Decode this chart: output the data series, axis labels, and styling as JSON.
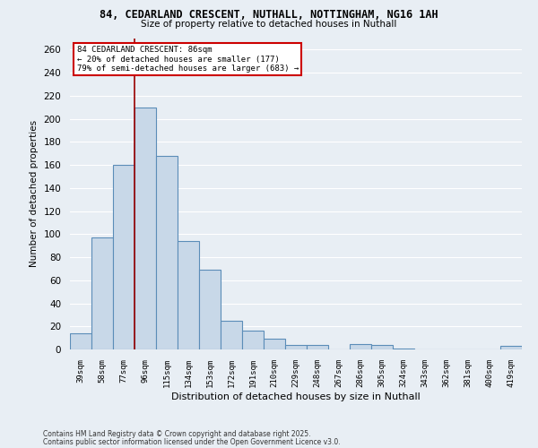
{
  "title1": "84, CEDARLAND CRESCENT, NUTHALL, NOTTINGHAM, NG16 1AH",
  "title2": "Size of property relative to detached houses in Nuthall",
  "xlabel": "Distribution of detached houses by size in Nuthall",
  "ylabel": "Number of detached properties",
  "categories": [
    "39sqm",
    "58sqm",
    "77sqm",
    "96sqm",
    "115sqm",
    "134sqm",
    "153sqm",
    "172sqm",
    "191sqm",
    "210sqm",
    "229sqm",
    "248sqm",
    "267sqm",
    "286sqm",
    "305sqm",
    "324sqm",
    "343sqm",
    "362sqm",
    "381sqm",
    "400sqm",
    "419sqm"
  ],
  "values": [
    14,
    97,
    160,
    210,
    168,
    94,
    69,
    25,
    16,
    9,
    4,
    4,
    0,
    5,
    4,
    1,
    0,
    0,
    0,
    0,
    3
  ],
  "bar_color": "#c8d8e8",
  "bar_edge_color": "#5b8db8",
  "ylim": [
    0,
    270
  ],
  "yticks": [
    0,
    20,
    40,
    60,
    80,
    100,
    120,
    140,
    160,
    180,
    200,
    220,
    240,
    260
  ],
  "red_line_x": 2.5,
  "annotation_title": "84 CEDARLAND CRESCENT: 86sqm",
  "annotation_line1": "← 20% of detached houses are smaller (177)",
  "annotation_line2": "79% of semi-detached houses are larger (683) →",
  "footer1": "Contains HM Land Registry data © Crown copyright and database right 2025.",
  "footer2": "Contains public sector information licensed under the Open Government Licence v3.0.",
  "bg_color": "#e8eef4",
  "grid_color": "#ffffff",
  "annotation_box_color": "#ffffff",
  "annotation_box_edge": "#cc0000"
}
